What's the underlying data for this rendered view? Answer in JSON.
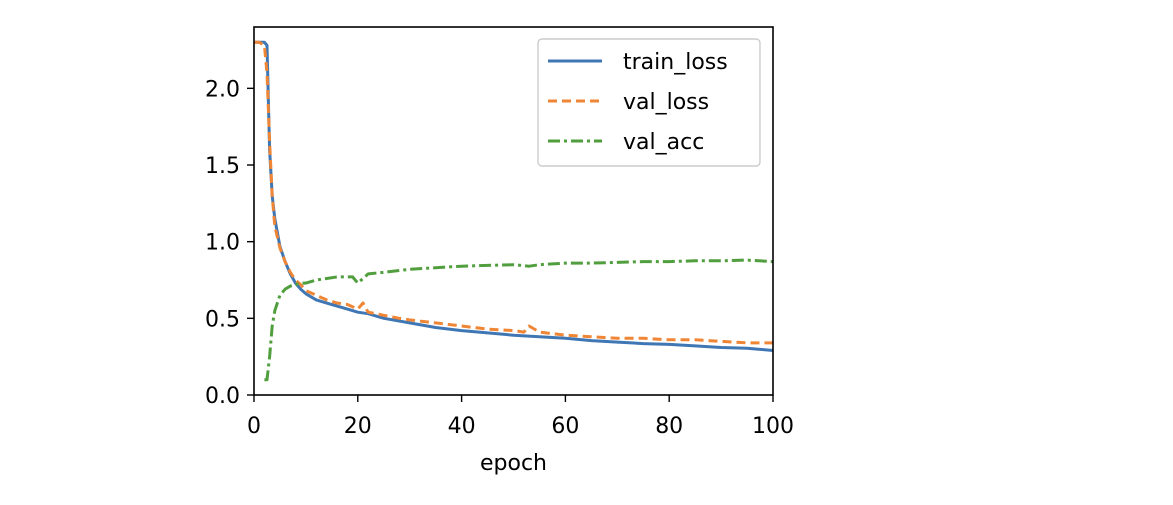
{
  "chart_data": {
    "type": "line",
    "xlabel": "epoch",
    "ylabel": "",
    "xlim": [
      0,
      100
    ],
    "ylim": [
      0,
      2.4
    ],
    "xticks": [
      0,
      20,
      40,
      60,
      80,
      100
    ],
    "xtick_labels": [
      "0",
      "20",
      "40",
      "60",
      "80",
      "100"
    ],
    "yticks": [
      0.0,
      0.5,
      1.0,
      1.5,
      2.0
    ],
    "ytick_labels": [
      "0.0",
      "0.5",
      "1.0",
      "1.5",
      "2.0"
    ],
    "grid": false,
    "legend_position": "top-right",
    "series": [
      {
        "name": "train_loss",
        "color": "#3f76b4",
        "dash": "solid",
        "x": [
          0,
          1,
          2,
          2.5,
          3,
          3.5,
          4,
          5,
          6,
          7,
          8,
          9,
          10,
          12,
          14,
          16,
          18,
          20,
          22,
          25,
          30,
          35,
          40,
          45,
          50,
          55,
          60,
          65,
          70,
          75,
          80,
          85,
          90,
          95,
          100
        ],
        "values": [
          2.3,
          2.3,
          2.3,
          2.28,
          1.6,
          1.3,
          1.15,
          0.97,
          0.87,
          0.79,
          0.73,
          0.69,
          0.66,
          0.62,
          0.6,
          0.58,
          0.56,
          0.54,
          0.53,
          0.5,
          0.47,
          0.44,
          0.42,
          0.405,
          0.39,
          0.38,
          0.37,
          0.355,
          0.345,
          0.335,
          0.33,
          0.32,
          0.31,
          0.305,
          0.29
        ]
      },
      {
        "name": "val_loss",
        "color": "#ef8636",
        "dash": "dashed",
        "x": [
          0,
          1,
          2,
          2.5,
          3,
          3.5,
          4,
          5,
          6,
          7,
          8,
          9,
          10,
          12,
          14,
          16,
          18,
          20,
          21,
          22,
          25,
          28,
          30,
          35,
          40,
          45,
          50,
          52,
          53,
          55,
          60,
          65,
          70,
          75,
          80,
          85,
          90,
          95,
          100
        ],
        "values": [
          2.3,
          2.3,
          2.28,
          2.1,
          1.65,
          1.3,
          1.1,
          0.96,
          0.87,
          0.8,
          0.75,
          0.72,
          0.68,
          0.65,
          0.62,
          0.6,
          0.59,
          0.56,
          0.6,
          0.54,
          0.52,
          0.5,
          0.49,
          0.47,
          0.45,
          0.43,
          0.42,
          0.41,
          0.45,
          0.41,
          0.39,
          0.38,
          0.37,
          0.37,
          0.36,
          0.36,
          0.35,
          0.34,
          0.34
        ]
      },
      {
        "name": "val_acc",
        "color": "#519e3e",
        "dash": "dashdot",
        "x": [
          2,
          2.5,
          3,
          3.5,
          4,
          5,
          6,
          7,
          8,
          9,
          10,
          12,
          14,
          16,
          18,
          19,
          20,
          22,
          25,
          30,
          35,
          40,
          45,
          50,
          53,
          55,
          60,
          65,
          70,
          75,
          80,
          85,
          90,
          95,
          100
        ],
        "values": [
          0.1,
          0.1,
          0.25,
          0.45,
          0.55,
          0.65,
          0.69,
          0.71,
          0.72,
          0.73,
          0.73,
          0.75,
          0.76,
          0.77,
          0.77,
          0.77,
          0.73,
          0.79,
          0.8,
          0.82,
          0.83,
          0.84,
          0.845,
          0.85,
          0.84,
          0.85,
          0.86,
          0.86,
          0.865,
          0.87,
          0.87,
          0.875,
          0.875,
          0.88,
          0.87
        ]
      }
    ]
  }
}
